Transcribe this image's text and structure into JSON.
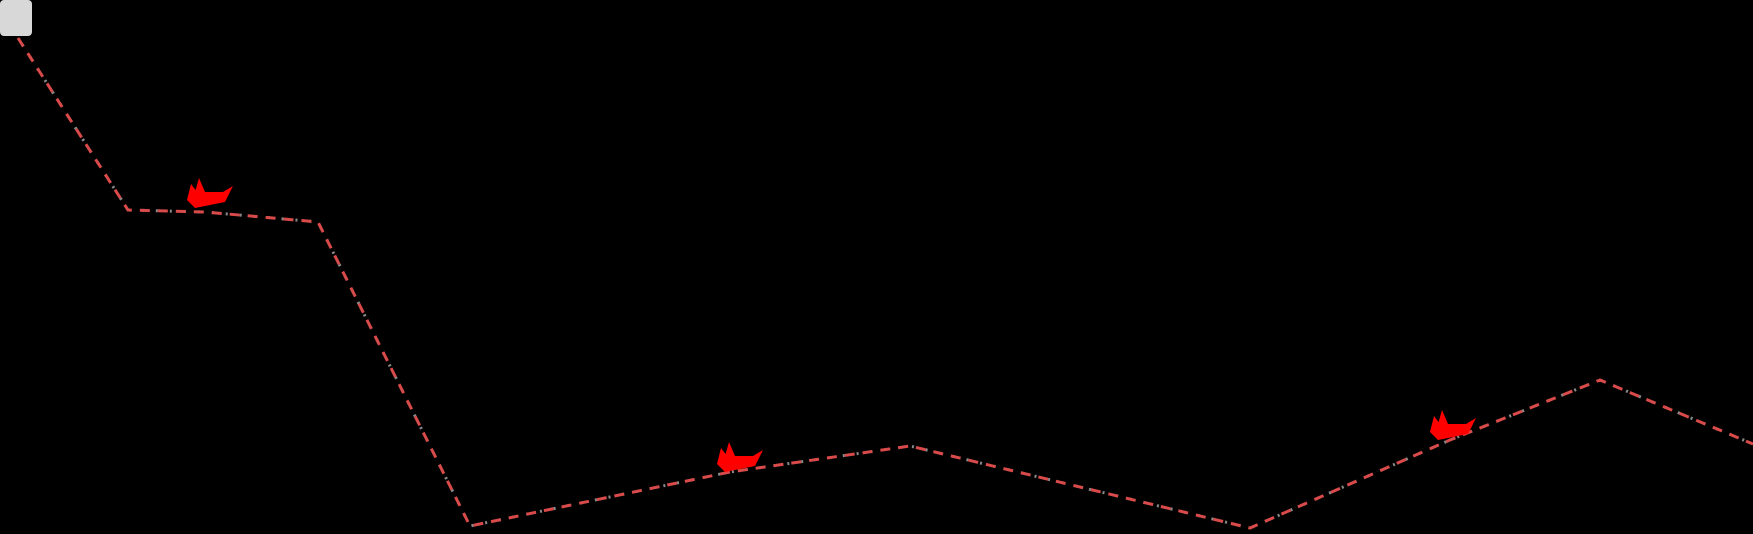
{
  "scene": {
    "background_color": "#000000",
    "path": {
      "description": "dashed route",
      "stroke_color": "#d94a4a",
      "dash_secondary_color": "#8a8a8a",
      "segments": 10
    },
    "player": {
      "icon": "gray-square-marker-icon",
      "color": "#d8d8d8"
    },
    "enemies": [
      {
        "icon": "red-ship-icon",
        "color": "#ff0000"
      },
      {
        "icon": "red-ship-icon",
        "color": "#ff0000"
      },
      {
        "icon": "red-ship-icon",
        "color": "#ff0000"
      }
    ]
  }
}
